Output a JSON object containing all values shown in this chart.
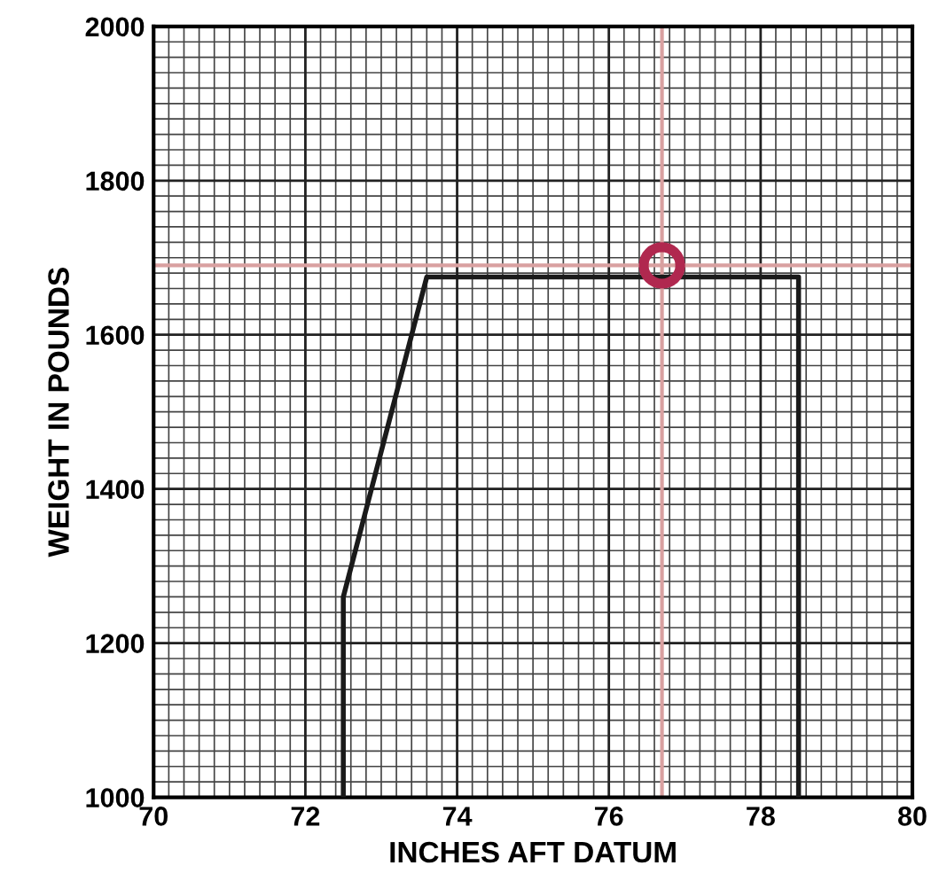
{
  "chart_data": {
    "type": "line",
    "xlabel": "INCHES AFT DATUM",
    "ylabel": "WEIGHT IN POUNDS",
    "xlim": [
      70,
      80
    ],
    "ylim": [
      1000,
      2000
    ],
    "xticks": [
      70,
      72,
      74,
      76,
      78,
      80
    ],
    "yticks": [
      1000,
      1200,
      1400,
      1600,
      1800,
      2000
    ],
    "grid": true,
    "series": [
      {
        "color": "#1a1a1a",
        "x": [
          72.5,
          72.5,
          73.6,
          78.5,
          78.5
        ],
        "values": [
          1000,
          1260,
          1675,
          1675,
          1000
        ]
      },
      {
        "type": "scatter",
        "color": "#b0284f",
        "marker": "circle",
        "x": [
          76.7
        ],
        "values": [
          1690
        ]
      }
    ],
    "ref_lines": [
      {
        "axis": "x",
        "value": 76.7,
        "color": "#d9a0a0"
      },
      {
        "axis": "y",
        "value": 1690,
        "color": "#d9a0a0"
      }
    ]
  }
}
